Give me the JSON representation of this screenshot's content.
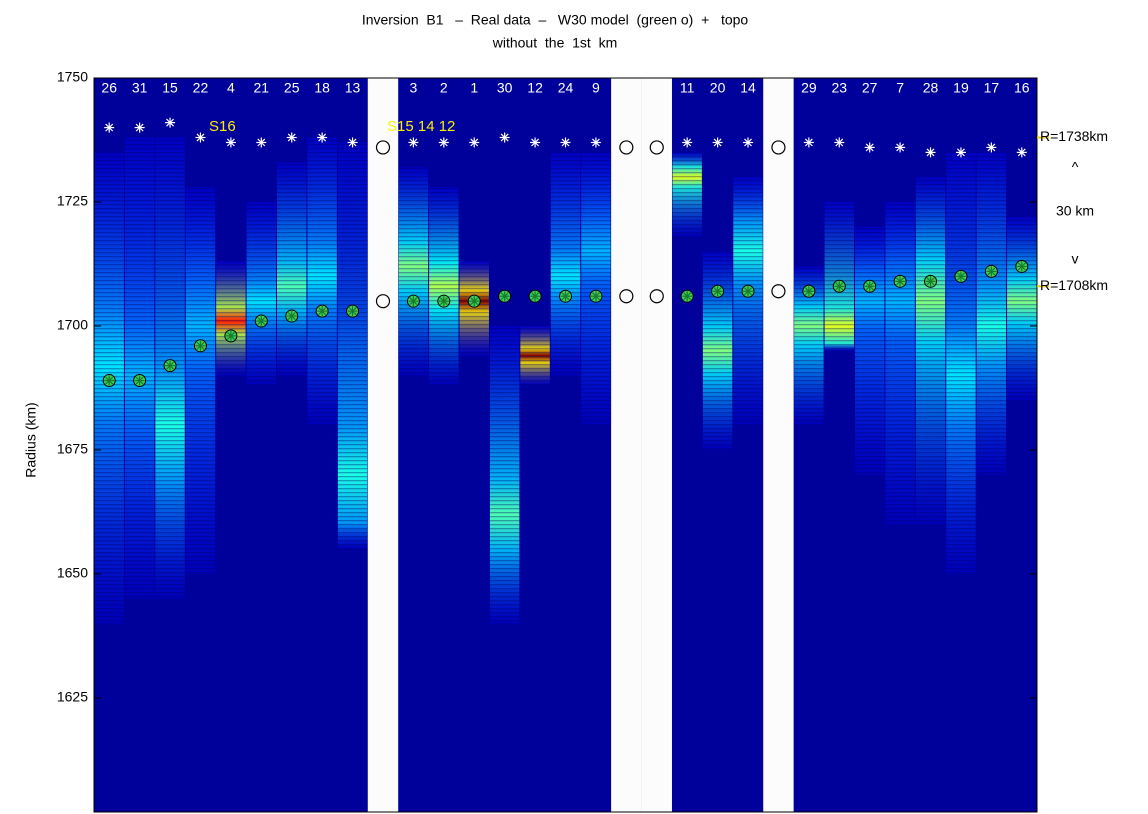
{
  "chart_data": {
    "type": "heatmap-columns",
    "title": [
      "Inversion  B1   –  Real data  –   W30 model  (green o)  +   topo",
      "without  the  1st  km"
    ],
    "ylabel": "Radius (km)",
    "ylim": [
      1602,
      1750
    ],
    "yticks": [
      1625,
      1650,
      1675,
      1700,
      1725,
      1750
    ],
    "categories": [
      "26",
      "31",
      "15",
      "22",
      "4",
      "21",
      "25",
      "18",
      "13",
      null,
      "3",
      "2",
      "1",
      "30",
      "12",
      "24",
      "9",
      null,
      null,
      "11",
      "20",
      "14",
      null,
      "29",
      "23",
      "27",
      "7",
      "28",
      "19",
      "17",
      "16"
    ],
    "topo": [
      1740,
      1740,
      1741,
      1738,
      1737,
      1737,
      1738,
      1738,
      1737,
      1736,
      1737,
      1737,
      1737,
      1738,
      1737,
      1737,
      1737,
      1736,
      1736,
      1737,
      1737,
      1737,
      1736,
      1737,
      1737,
      1736,
      1736,
      1735,
      1735,
      1736,
      1735
    ],
    "model": [
      1689,
      1689,
      1692,
      1696,
      1698,
      1701,
      1702,
      1703,
      1703,
      1705,
      1705,
      1705,
      1705,
      1706,
      1706,
      1706,
      1706,
      1706,
      1706,
      1706,
      1707,
      1707,
      1707,
      1707,
      1708,
      1708,
      1709,
      1709,
      1710,
      1711,
      1712
    ],
    "signal_top": [
      1735,
      1738,
      1738,
      1728,
      1713,
      1725,
      1733,
      1738,
      1737,
      null,
      1732,
      1728,
      1713,
      1700,
      1700,
      1735,
      1735,
      null,
      null,
      1735,
      1715,
      1730,
      null,
      1712,
      1725,
      1720,
      1725,
      1730,
      1735,
      1735,
      1722
    ],
    "signal_bottom": [
      1640,
      1645,
      1645,
      1650,
      1690,
      1688,
      1690,
      1680,
      1655,
      null,
      1690,
      1688,
      1694,
      1640,
      1688,
      1690,
      1680,
      null,
      null,
      1718,
      1675,
      1680,
      null,
      1680,
      1695,
      1670,
      1660,
      1660,
      1650,
      1670,
      1685
    ],
    "peak": [
      1692,
      1690,
      1680,
      1700,
      1701,
      1705,
      1708,
      1710,
      1670,
      null,
      1712,
      1708,
      1705,
      1662,
      1694,
      1710,
      1715,
      null,
      null,
      1730,
      1695,
      1715,
      null,
      1700,
      1700,
      1705,
      1705,
      1705,
      1690,
      1700,
      1705
    ],
    "peak_level": [
      0.35,
      0.3,
      0.4,
      0.3,
      0.85,
      0.35,
      0.45,
      0.35,
      0.4,
      null,
      0.5,
      0.55,
      1.0,
      0.45,
      1.0,
      0.35,
      0.3,
      null,
      null,
      0.6,
      0.5,
      0.4,
      null,
      0.5,
      0.6,
      0.3,
      0.3,
      0.5,
      0.35,
      0.4,
      0.5
    ],
    "annotations": [
      "S16",
      "S15 14 12"
    ],
    "right_labels": [
      "R=1738km",
      "^",
      "30 km",
      "v",
      "R=1708km"
    ],
    "reference_radii": [
      1738,
      1708
    ]
  }
}
